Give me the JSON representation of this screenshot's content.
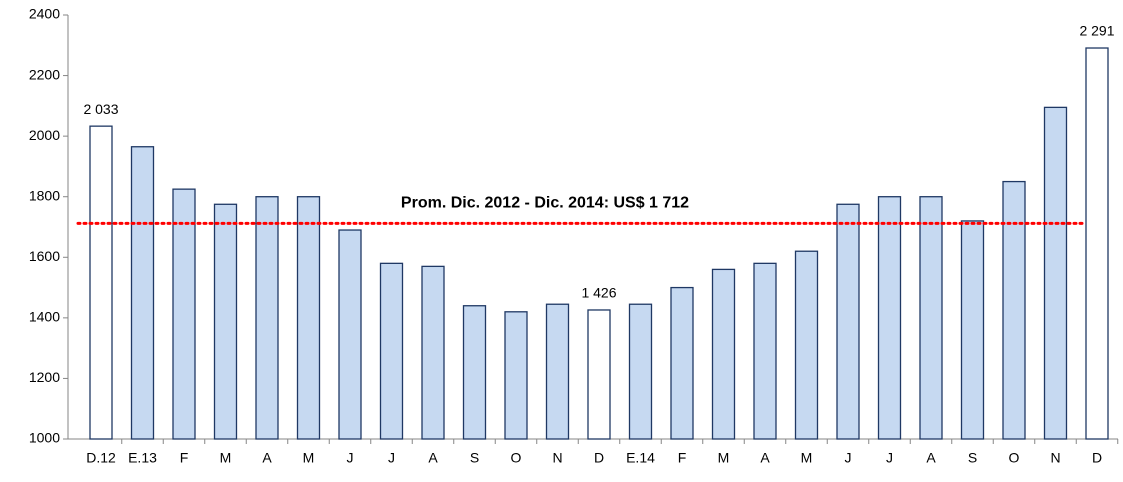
{
  "chart_data": {
    "type": "bar",
    "categories": [
      "D.12",
      "E.13",
      "F",
      "M",
      "A",
      "M",
      "J",
      "J",
      "A",
      "S",
      "O",
      "N",
      "D",
      "E.14",
      "F",
      "M",
      "A",
      "M",
      "J",
      "J",
      "A",
      "S",
      "O",
      "N",
      "D"
    ],
    "values": [
      2033,
      1965,
      1825,
      1775,
      1800,
      1800,
      1690,
      1580,
      1570,
      1440,
      1420,
      1445,
      1426,
      1445,
      1500,
      1560,
      1580,
      1620,
      1775,
      1800,
      1800,
      1720,
      1850,
      2095,
      2291
    ],
    "value_labels": [
      "2 033",
      null,
      null,
      null,
      null,
      null,
      null,
      null,
      null,
      null,
      null,
      null,
      "1 426",
      null,
      null,
      null,
      null,
      null,
      null,
      null,
      null,
      null,
      null,
      null,
      "2 291"
    ],
    "colors": [
      "#ffffff",
      "#c6d9f1",
      "#c6d9f1",
      "#c6d9f1",
      "#c6d9f1",
      "#c6d9f1",
      "#c6d9f1",
      "#c6d9f1",
      "#c6d9f1",
      "#c6d9f1",
      "#c6d9f1",
      "#c6d9f1",
      "#ffffff",
      "#c6d9f1",
      "#c6d9f1",
      "#c6d9f1",
      "#c6d9f1",
      "#c6d9f1",
      "#c6d9f1",
      "#c6d9f1",
      "#c6d9f1",
      "#c6d9f1",
      "#c6d9f1",
      "#c6d9f1",
      "#ffffff"
    ],
    "edge_color": "#1f3864",
    "ylim": [
      1000,
      2400
    ],
    "yticks": [
      1000,
      1200,
      1400,
      1600,
      1800,
      2000,
      2200,
      2400
    ],
    "reference_line": {
      "value": 1712,
      "label": "Prom. Dic. 2012 - Dic. 2014: US$ 1 712",
      "color": "#ff0000"
    }
  }
}
